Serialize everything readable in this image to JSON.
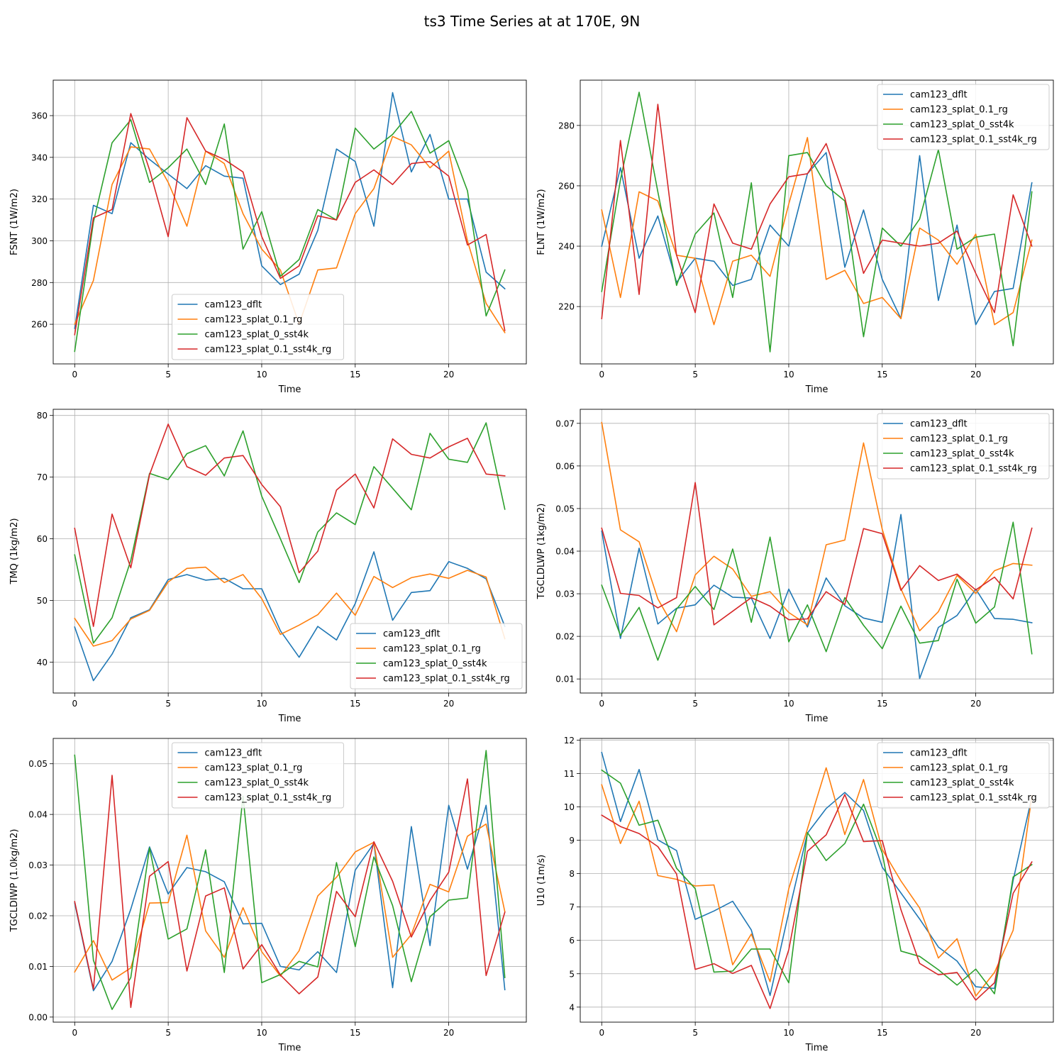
{
  "figure": {
    "suptitle": "ts3 Time Series at at 170E, 9N"
  },
  "colors": {
    "cam123_dflt": "#1f77b4",
    "cam123_splat_0.1_rg": "#ff7f0e",
    "cam123_splat_0_sst4k": "#2ca02c",
    "cam123_splat_0.1_sst4k_rg": "#d62728",
    "grid": "#b0b0b0"
  },
  "chart_data": [
    {
      "type": "line",
      "title": "",
      "xlabel": "Time",
      "ylabel": "FSNT (1W/m2)",
      "xlim": [
        -1.15,
        24.15
      ],
      "ylim": [
        241,
        377
      ],
      "xticks": [
        0,
        5,
        10,
        15,
        20
      ],
      "yticks": [
        260,
        280,
        300,
        320,
        340,
        360
      ],
      "ytick_labels": [
        "260",
        "280",
        "300",
        "320",
        "340",
        "360"
      ],
      "legend": "lower-center",
      "x": [
        0,
        1,
        2,
        3,
        4,
        5,
        6,
        7,
        8,
        9,
        10,
        11,
        12,
        13,
        14,
        15,
        16,
        17,
        18,
        19,
        20,
        21,
        22,
        23
      ],
      "series": [
        {
          "name": "cam123_dflt",
          "values": [
            258,
            317,
            313,
            347,
            339,
            332,
            325,
            336,
            331,
            330,
            288,
            279,
            284,
            305,
            344,
            338,
            307,
            371,
            333,
            351,
            320,
            320,
            285,
            277
          ]
        },
        {
          "name": "cam123_splat_0.1_rg",
          "values": [
            260,
            281,
            327,
            345,
            344,
            328,
            307,
            343,
            337,
            313,
            296,
            286,
            260,
            286,
            287,
            313,
            325,
            350,
            346,
            335,
            343,
            300,
            270,
            256
          ]
        },
        {
          "name": "cam123_splat_0_sst4k",
          "values": [
            247,
            309,
            347,
            358,
            328,
            335,
            344,
            327,
            356,
            296,
            314,
            283,
            291,
            315,
            310,
            354,
            344,
            351,
            362,
            342,
            348,
            324,
            264,
            286
          ]
        },
        {
          "name": "cam123_splat_0.1_sst4k_rg",
          "values": [
            255,
            311,
            315,
            361,
            334,
            302,
            359,
            343,
            339,
            333,
            302,
            282,
            288,
            312,
            310,
            328,
            334,
            327,
            337,
            338,
            331,
            298,
            303,
            257
          ]
        }
      ]
    },
    {
      "type": "line",
      "title": "",
      "xlabel": "Time",
      "ylabel": "FLNT (1W/m2)",
      "xlim": [
        -1.15,
        24.15
      ],
      "ylim": [
        201,
        295
      ],
      "xticks": [
        0,
        5,
        10,
        15,
        20
      ],
      "yticks": [
        220,
        240,
        260,
        280
      ],
      "ytick_labels": [
        "220",
        "240",
        "260",
        "280"
      ],
      "legend": "upper-right",
      "x": [
        0,
        1,
        2,
        3,
        4,
        5,
        6,
        7,
        8,
        9,
        10,
        11,
        12,
        13,
        14,
        15,
        16,
        17,
        18,
        19,
        20,
        21,
        22,
        23
      ],
      "series": [
        {
          "name": "cam123_dflt",
          "values": [
            240,
            266,
            236,
            250,
            228,
            236,
            235,
            227,
            229,
            247,
            240,
            264,
            271,
            233,
            252,
            229,
            216,
            270,
            222,
            247,
            214,
            225,
            226,
            261
          ]
        },
        {
          "name": "cam123_splat_0.1_rg",
          "values": [
            252,
            223,
            258,
            255,
            237,
            236,
            214,
            235,
            237,
            230,
            254,
            276,
            229,
            232,
            221,
            223,
            216,
            246,
            242,
            234,
            244,
            214,
            218,
            242
          ]
        },
        {
          "name": "cam123_splat_0_sst4k",
          "values": [
            225,
            262,
            291,
            258,
            227,
            244,
            251,
            223,
            261,
            205,
            270,
            271,
            260,
            255,
            210,
            246,
            240,
            249,
            272,
            239,
            243,
            244,
            207,
            258
          ]
        },
        {
          "name": "cam123_splat_0.1_sst4k_rg",
          "values": [
            216,
            275,
            224,
            287,
            237,
            218,
            254,
            241,
            239,
            254,
            263,
            264,
            274,
            256,
            231,
            242,
            241,
            240,
            241,
            245,
            231,
            218,
            257,
            240
          ]
        }
      ]
    },
    {
      "type": "line",
      "title": "",
      "xlabel": "Time",
      "ylabel": "TMQ (1kg/m2)",
      "xlim": [
        -1.15,
        24.15
      ],
      "ylim": [
        35,
        81
      ],
      "xticks": [
        0,
        5,
        10,
        15,
        20
      ],
      "yticks": [
        40,
        50,
        60,
        70,
        80
      ],
      "ytick_labels": [
        "40",
        "50",
        "60",
        "70",
        "80"
      ],
      "legend": "lower-right",
      "x": [
        0,
        1,
        2,
        3,
        4,
        5,
        6,
        7,
        8,
        9,
        10,
        11,
        12,
        13,
        14,
        15,
        16,
        17,
        18,
        19,
        20,
        21,
        22,
        23
      ],
      "series": [
        {
          "name": "cam123_dflt",
          "values": [
            45.7,
            37,
            41.3,
            47.2,
            48.5,
            53.4,
            54.2,
            53.3,
            53.6,
            51.9,
            51.9,
            45.1,
            40.8,
            45.8,
            43.6,
            49.5,
            57.9,
            46.8,
            51.3,
            51.6,
            56.3,
            55.2,
            53.5,
            45.8
          ]
        },
        {
          "name": "cam123_splat_0.1_rg",
          "values": [
            47.1,
            42.6,
            43.5,
            47,
            48.4,
            53,
            55.2,
            55.4,
            52.9,
            54.2,
            50.3,
            44.5,
            46,
            47.7,
            51.2,
            47.6,
            53.9,
            52.1,
            53.7,
            54.3,
            53.6,
            54.9,
            53.8,
            43.8
          ]
        },
        {
          "name": "cam123_splat_0_sst4k",
          "values": [
            57.4,
            43.1,
            47.2,
            56.5,
            70.6,
            69.6,
            73.8,
            75.1,
            70.2,
            77.5,
            66.9,
            60,
            52.9,
            61.1,
            64.2,
            62.3,
            71.7,
            68.2,
            64.7,
            77.1,
            72.9,
            72.4,
            78.8,
            64.8
          ]
        },
        {
          "name": "cam123_splat_0.1_sst4k_rg",
          "values": [
            61.7,
            45.8,
            64,
            55.3,
            70.4,
            78.6,
            71.7,
            70.3,
            73.1,
            73.5,
            68.8,
            65.2,
            54.5,
            58,
            67.9,
            70.5,
            65,
            76.2,
            73.7,
            73.1,
            74.9,
            76.3,
            70.5,
            70.2
          ]
        }
      ]
    },
    {
      "type": "line",
      "title": "",
      "xlabel": "Time",
      "ylabel": "TGCLDLWP (1kg/m2)",
      "xlim": [
        -1.15,
        24.15
      ],
      "ylim": [
        0.0067,
        0.0733
      ],
      "xticks": [
        0,
        5,
        10,
        15,
        20
      ],
      "yticks": [
        0.01,
        0.02,
        0.03,
        0.04,
        0.05,
        0.06,
        0.07
      ],
      "ytick_labels": [
        "0.01",
        "0.02",
        "0.03",
        "0.04",
        "0.05",
        "0.06",
        "0.07"
      ],
      "legend": "upper-right",
      "x": [
        0,
        1,
        2,
        3,
        4,
        5,
        6,
        7,
        8,
        9,
        10,
        11,
        12,
        13,
        14,
        15,
        16,
        17,
        18,
        19,
        20,
        21,
        22,
        23
      ],
      "series": [
        {
          "name": "cam123_dflt",
          "values": [
            0.0447,
            0.0195,
            0.0407,
            0.0229,
            0.0266,
            0.0274,
            0.032,
            0.0292,
            0.029,
            0.0195,
            0.0311,
            0.0222,
            0.0337,
            0.0272,
            0.0243,
            0.0233,
            0.0486,
            0.0101,
            0.0221,
            0.0249,
            0.0311,
            0.0242,
            0.024,
            0.0232
          ]
        },
        {
          "name": "cam123_splat_0.1_rg",
          "values": [
            0.0702,
            0.045,
            0.0422,
            0.0288,
            0.0211,
            0.0344,
            0.0388,
            0.0358,
            0.0294,
            0.0305,
            0.0256,
            0.0227,
            0.0415,
            0.0426,
            0.0654,
            0.0451,
            0.0312,
            0.0213,
            0.0258,
            0.0343,
            0.0301,
            0.0354,
            0.0371,
            0.0367
          ]
        },
        {
          "name": "cam123_splat_0_sst4k",
          "values": [
            0.032,
            0.0202,
            0.0268,
            0.0144,
            0.0264,
            0.0317,
            0.0263,
            0.0405,
            0.0233,
            0.0433,
            0.0187,
            0.0274,
            0.0164,
            0.0291,
            0.0226,
            0.0171,
            0.0271,
            0.0184,
            0.019,
            0.0334,
            0.0231,
            0.0269,
            0.0468,
            0.0159
          ]
        },
        {
          "name": "cam123_splat_0.1_sst4k_rg",
          "values": [
            0.0454,
            0.0301,
            0.0296,
            0.0267,
            0.0291,
            0.0561,
            0.0227,
            0.0259,
            0.0291,
            0.0271,
            0.0239,
            0.0241,
            0.0305,
            0.0275,
            0.0453,
            0.0441,
            0.0308,
            0.0366,
            0.0331,
            0.0346,
            0.0309,
            0.0339,
            0.0288,
            0.0454
          ]
        }
      ]
    },
    {
      "type": "line",
      "title": "",
      "xlabel": "Time",
      "ylabel": "TGCLDIWP (1.0kg/m2)",
      "xlim": [
        -1.15,
        24.15
      ],
      "ylim": [
        -0.001,
        0.055
      ],
      "xticks": [
        0,
        5,
        10,
        15,
        20
      ],
      "yticks": [
        0.0,
        0.01,
        0.02,
        0.03,
        0.04,
        0.05
      ],
      "ytick_labels": [
        "0.00",
        "0.01",
        "0.02",
        "0.03",
        "0.04",
        "0.05"
      ],
      "legend": "upper-center",
      "x": [
        0,
        1,
        2,
        3,
        4,
        5,
        6,
        7,
        8,
        9,
        10,
        11,
        12,
        13,
        14,
        15,
        16,
        17,
        18,
        19,
        20,
        21,
        22,
        23
      ],
      "series": [
        {
          "name": "cam123_dflt",
          "values": [
            0.0225,
            0.0052,
            0.011,
            0.0213,
            0.0336,
            0.0243,
            0.0295,
            0.0287,
            0.0267,
            0.0184,
            0.0185,
            0.01,
            0.0093,
            0.0129,
            0.0088,
            0.029,
            0.0343,
            0.0058,
            0.0376,
            0.0141,
            0.0418,
            0.0292,
            0.0418,
            0.0054
          ]
        },
        {
          "name": "cam123_splat_0.1_rg",
          "values": [
            0.0089,
            0.0151,
            0.0073,
            0.0097,
            0.0225,
            0.0226,
            0.0359,
            0.017,
            0.0118,
            0.0216,
            0.0129,
            0.0081,
            0.0131,
            0.0239,
            0.0276,
            0.0326,
            0.0345,
            0.0118,
            0.0163,
            0.0262,
            0.0247,
            0.0357,
            0.0381,
            0.0208
          ]
        },
        {
          "name": "cam123_splat_0_sst4k",
          "values": [
            0.0517,
            0.0112,
            0.0015,
            0.0078,
            0.0334,
            0.0154,
            0.0174,
            0.033,
            0.0088,
            0.0436,
            0.0068,
            0.0084,
            0.011,
            0.0099,
            0.0305,
            0.0139,
            0.0316,
            0.022,
            0.007,
            0.0198,
            0.0231,
            0.0235,
            0.0526,
            0.0078
          ]
        },
        {
          "name": "cam123_splat_0.1_sst4k_rg",
          "values": [
            0.0228,
            0.0055,
            0.0477,
            0.0019,
            0.0278,
            0.0307,
            0.0091,
            0.0239,
            0.0255,
            0.0095,
            0.0143,
            0.0083,
            0.0046,
            0.0079,
            0.0248,
            0.0198,
            0.0346,
            0.0268,
            0.0158,
            0.023,
            0.0286,
            0.047,
            0.0082,
            0.0207
          ]
        }
      ]
    },
    {
      "type": "line",
      "title": "",
      "xlabel": "Time",
      "ylabel": "U10 (1m/s)",
      "xlim": [
        -1.15,
        24.15
      ],
      "ylim": [
        3.55,
        12.05
      ],
      "xticks": [
        0,
        5,
        10,
        15,
        20
      ],
      "yticks": [
        4,
        5,
        6,
        7,
        8,
        9,
        10,
        11,
        12
      ],
      "ytick_labels": [
        "4",
        "5",
        "6",
        "7",
        "8",
        "9",
        "10",
        "11",
        "12"
      ],
      "legend": "upper-right",
      "x": [
        0,
        1,
        2,
        3,
        4,
        5,
        6,
        7,
        8,
        9,
        10,
        11,
        12,
        13,
        14,
        15,
        16,
        17,
        18,
        19,
        20,
        21,
        22,
        23
      ],
      "series": [
        {
          "name": "cam123_dflt",
          "values": [
            11.63,
            9.56,
            11.12,
            9.01,
            8.69,
            6.63,
            6.88,
            7.17,
            6.31,
            4.35,
            6.84,
            9.21,
            9.95,
            10.43,
            9.89,
            8.19,
            7.42,
            6.64,
            5.8,
            5.38,
            4.61,
            4.56,
            7.8,
            10.3
          ]
        },
        {
          "name": "cam123_splat_0.1_rg",
          "values": [
            10.66,
            8.9,
            10.17,
            7.94,
            7.83,
            7.63,
            7.66,
            5.27,
            6.19,
            4.76,
            7.55,
            9.34,
            11.17,
            9.17,
            10.82,
            8.72,
            7.78,
            6.97,
            5.47,
            6.05,
            4.33,
            5.04,
            6.3,
            10.33
          ]
        },
        {
          "name": "cam123_splat_0_sst4k",
          "values": [
            11.1,
            10.71,
            9.45,
            9.6,
            8.16,
            7.55,
            5.05,
            5.08,
            5.74,
            5.74,
            4.73,
            9.23,
            8.39,
            8.9,
            10.08,
            8.61,
            5.68,
            5.52,
            5.12,
            4.66,
            5.14,
            4.4,
            7.9,
            8.27
          ]
        },
        {
          "name": "cam123_splat_0.1_sst4k_rg",
          "values": [
            9.75,
            9.41,
            9.2,
            8.81,
            7.99,
            5.13,
            5.3,
            5.01,
            5.25,
            3.96,
            5.72,
            8.67,
            9.16,
            10.37,
            8.96,
            8.99,
            6.92,
            5.31,
            4.97,
            5.04,
            4.21,
            4.73,
            7.41,
            8.35
          ]
        }
      ]
    }
  ]
}
